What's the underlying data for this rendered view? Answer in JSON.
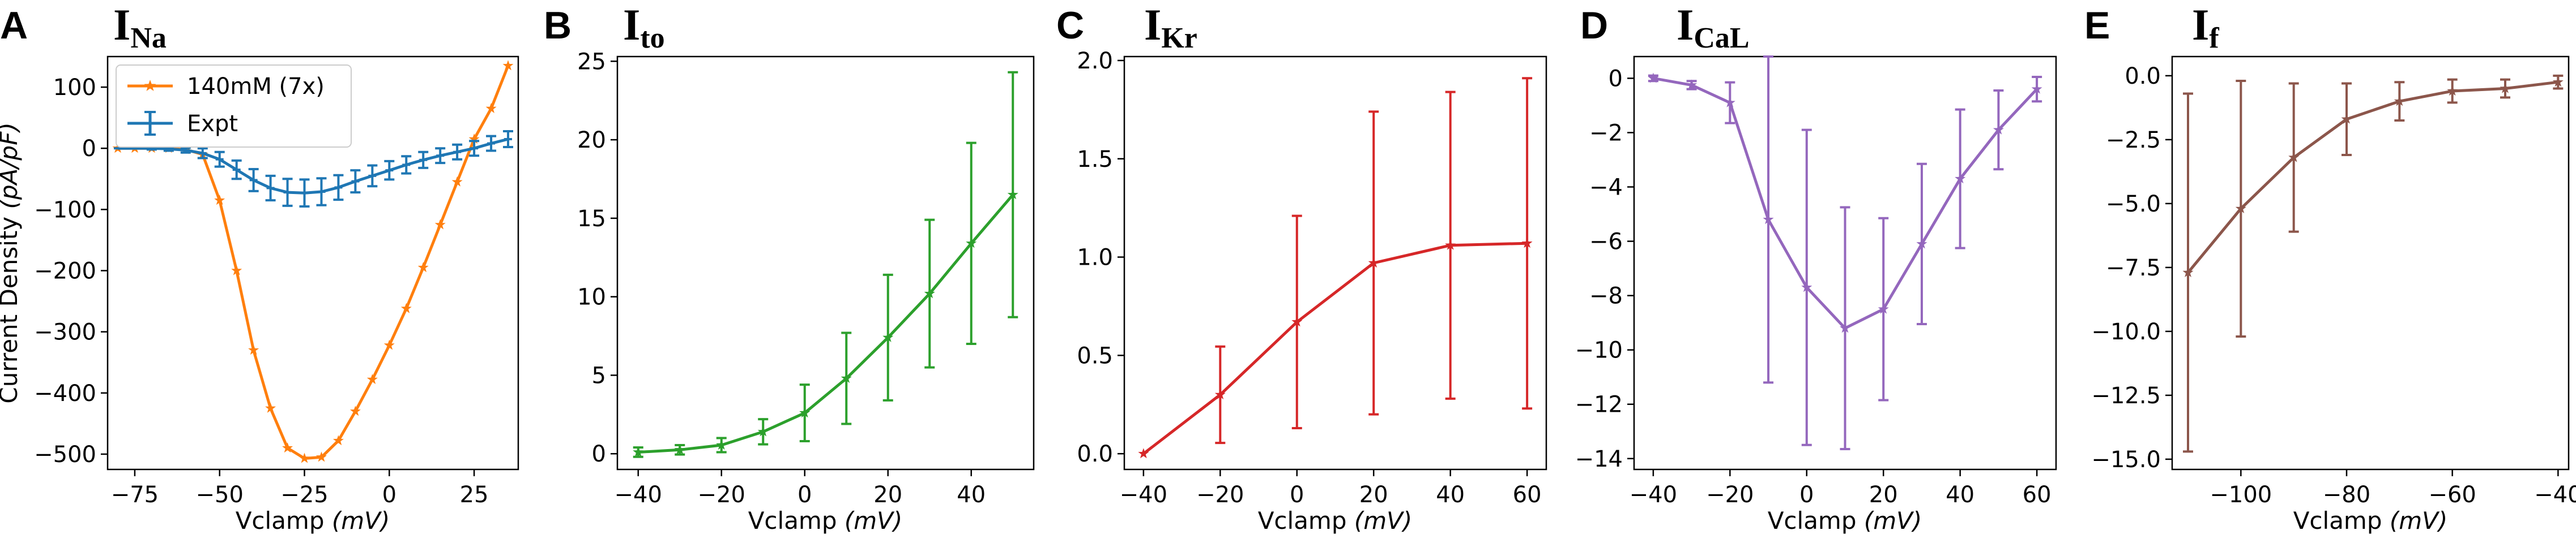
{
  "chart_data": [
    {
      "id": "A",
      "type": "line",
      "panel_letter": "A",
      "title_main": "I",
      "title_sub": "Na",
      "xlabel_text": "Vclamp ",
      "xlabel_unit": "(mV)",
      "ylabel_text": "Current Density ",
      "ylabel_unit": "(pA/pF)",
      "xlim": [
        -83,
        38
      ],
      "ylim": [
        -525,
        150
      ],
      "xticks": [
        -75,
        -50,
        -25,
        0,
        25
      ],
      "yticks": [
        -500,
        -400,
        -300,
        -200,
        -100,
        0,
        100
      ],
      "legend_position": "top-left",
      "series": [
        {
          "name": "140mM (7x)",
          "color": "#ff7f0e",
          "marker": "star",
          "x": [
            -80,
            -75,
            -70,
            -65,
            -60,
            -55,
            -50,
            -45,
            -40,
            -35,
            -30,
            -25,
            -20,
            -15,
            -10,
            -5,
            0,
            5,
            10,
            15,
            20,
            25,
            30,
            35
          ],
          "y": [
            0,
            0,
            0,
            0,
            -2,
            -10,
            -85,
            -200,
            -330,
            -425,
            -490,
            -507,
            -505,
            -478,
            -430,
            -378,
            -322,
            -262,
            -195,
            -125,
            -55,
            15,
            65,
            135
          ]
        },
        {
          "name": "Expt",
          "color": "#1f77b4",
          "marker": "errorbar",
          "x": [
            -80,
            -75,
            -70,
            -65,
            -60,
            -55,
            -50,
            -45,
            -40,
            -35,
            -30,
            -25,
            -20,
            -15,
            -10,
            -5,
            0,
            5,
            10,
            15,
            20,
            25,
            30,
            35
          ],
          "y": [
            0,
            0,
            0,
            -1,
            -3,
            -8,
            -18,
            -35,
            -52,
            -65,
            -72,
            -73,
            -71,
            -64,
            -54,
            -45,
            -36,
            -27,
            -19,
            -12,
            -6,
            0,
            8,
            15
          ],
          "err": [
            0,
            0,
            2,
            3,
            4,
            8,
            12,
            15,
            18,
            20,
            22,
            22,
            22,
            20,
            18,
            17,
            15,
            14,
            13,
            12,
            12,
            12,
            12,
            13
          ]
        }
      ]
    },
    {
      "id": "B",
      "type": "line",
      "panel_letter": "B",
      "title_main": "I",
      "title_sub": "to",
      "xlabel_text": "Vclamp ",
      "xlabel_unit": "(mV)",
      "xlim": [
        -45,
        55
      ],
      "ylim": [
        -1,
        25.3
      ],
      "xticks": [
        -40,
        -20,
        0,
        20,
        40
      ],
      "yticks": [
        0,
        5,
        10,
        15,
        20,
        25
      ],
      "series": [
        {
          "name": "",
          "color": "#2ca02c",
          "marker": "star",
          "x": [
            -40,
            -30,
            -20,
            -10,
            0,
            10,
            20,
            30,
            40,
            50
          ],
          "y": [
            0.1,
            0.25,
            0.55,
            1.4,
            2.6,
            4.8,
            7.4,
            10.2,
            13.4,
            16.5
          ],
          "err": [
            0.3,
            0.3,
            0.45,
            0.8,
            1.8,
            2.9,
            4.0,
            4.7,
            6.4,
            7.8
          ]
        }
      ]
    },
    {
      "id": "C",
      "type": "line",
      "panel_letter": "C",
      "title_main": "I",
      "title_sub": "Kr",
      "xlabel_text": "Vclamp ",
      "xlabel_unit": "(mV)",
      "xlim": [
        -45,
        65
      ],
      "ylim": [
        -0.08,
        2.02
      ],
      "xticks": [
        -40,
        -20,
        0,
        20,
        40,
        60
      ],
      "yticks": [
        0.0,
        0.5,
        1.0,
        1.5,
        2.0
      ],
      "ytick_decimals": 1,
      "series": [
        {
          "name": "",
          "color": "#d62728",
          "marker": "star",
          "x": [
            -40,
            -20,
            0,
            20,
            40,
            60
          ],
          "y": [
            0.0,
            0.3,
            0.67,
            0.97,
            1.06,
            1.07
          ],
          "err": [
            0,
            0.245,
            0.54,
            0.77,
            0.78,
            0.84
          ]
        }
      ]
    },
    {
      "id": "D",
      "type": "line",
      "panel_letter": "D",
      "title_main": "I",
      "title_sub": "CaL",
      "xlabel_text": "Vclamp ",
      "xlabel_unit": "(mV)",
      "xlim": [
        -45,
        65
      ],
      "ylim": [
        -14.4,
        0.8
      ],
      "xticks": [
        -40,
        -20,
        0,
        20,
        40,
        60
      ],
      "yticks": [
        -14,
        -12,
        -10,
        -8,
        -6,
        -4,
        -2,
        0
      ],
      "series": [
        {
          "name": "",
          "color": "#9467bd",
          "marker": "star",
          "x": [
            -40,
            -30,
            -20,
            -10,
            0,
            10,
            20,
            30,
            40,
            50,
            60
          ],
          "y": [
            0.0,
            -0.25,
            -0.9,
            -5.2,
            -7.7,
            -9.2,
            -8.5,
            -6.1,
            -3.7,
            -1.9,
            -0.4
          ],
          "err": [
            0.1,
            0.15,
            0.75,
            6.0,
            5.8,
            4.45,
            3.35,
            2.95,
            2.55,
            1.45,
            0.45
          ]
        }
      ]
    },
    {
      "id": "E",
      "type": "line",
      "panel_letter": "E",
      "title_main": "I",
      "title_sub": "f",
      "xlabel_text": "Vclamp ",
      "xlabel_unit": "(mV)",
      "xlim": [
        -113,
        -38
      ],
      "ylim": [
        -15.4,
        0.75
      ],
      "xticks": [
        -100,
        -80,
        -60,
        -40
      ],
      "yticks": [
        -15.0,
        -12.5,
        -10.0,
        -7.5,
        -5.0,
        -2.5,
        0.0
      ],
      "ytick_decimals": 1,
      "series": [
        {
          "name": "",
          "color": "#8c564b",
          "marker": "star",
          "x": [
            -110,
            -100,
            -90,
            -80,
            -70,
            -60,
            -50,
            -40
          ],
          "y": [
            -7.7,
            -5.2,
            -3.2,
            -1.7,
            -1.0,
            -0.6,
            -0.5,
            -0.25
          ],
          "err": [
            7.0,
            5.0,
            2.9,
            1.4,
            0.75,
            0.45,
            0.35,
            0.25
          ]
        }
      ]
    }
  ]
}
